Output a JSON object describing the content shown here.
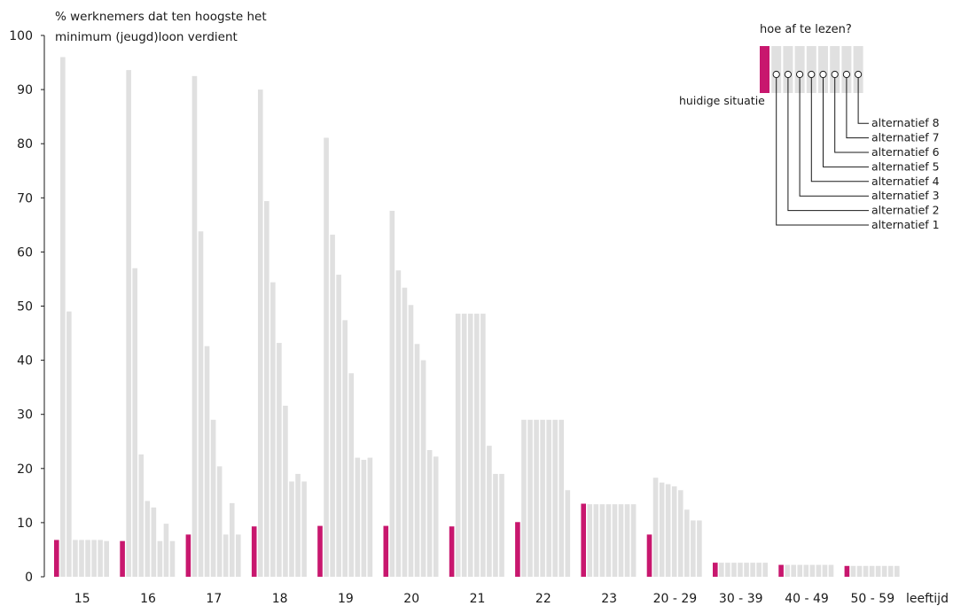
{
  "chart_data": {
    "type": "bar",
    "ylabel": [
      "% werknemers dat ten hoogste het",
      "minimum (jeugd)loon verdient"
    ],
    "xlabel": "leeftijd",
    "ylim": [
      0,
      100
    ],
    "yticks": [
      0,
      10,
      20,
      30,
      40,
      50,
      60,
      70,
      80,
      90,
      100
    ],
    "grid": false,
    "categories": [
      "15",
      "16",
      "17",
      "18",
      "19",
      "20",
      "21",
      "22",
      "23",
      "20 - 29",
      "30 - 39",
      "40 - 49",
      "50 - 59"
    ],
    "series": [
      {
        "name": "huidige situatie",
        "values": [
          6.8,
          6.6,
          7.8,
          9.3,
          9.4,
          9.4,
          9.3,
          10.1,
          13.5,
          7.8,
          2.6,
          2.2,
          2.0
        ]
      },
      {
        "name": "alternatief 1",
        "values": [
          96.0,
          93.6,
          92.5,
          90.0,
          81.1,
          67.6,
          48.6,
          29.0,
          13.4,
          18.3,
          2.6,
          2.2,
          2.0
        ]
      },
      {
        "name": "alternatief 2",
        "values": [
          49.0,
          57.0,
          63.8,
          69.4,
          63.2,
          56.6,
          48.6,
          29.0,
          13.4,
          17.4,
          2.6,
          2.2,
          2.0
        ]
      },
      {
        "name": "alternatief 3",
        "values": [
          6.8,
          22.6,
          42.6,
          54.4,
          55.8,
          53.4,
          48.6,
          29.0,
          13.4,
          17.1,
          2.6,
          2.2,
          2.0
        ]
      },
      {
        "name": "alternatief 4",
        "values": [
          6.8,
          14.0,
          29.0,
          43.2,
          47.4,
          50.2,
          48.6,
          29.0,
          13.4,
          16.7,
          2.6,
          2.2,
          2.0
        ]
      },
      {
        "name": "alternatief 5",
        "values": [
          6.8,
          12.8,
          20.4,
          31.6,
          37.6,
          43.0,
          48.6,
          29.0,
          13.4,
          16.0,
          2.6,
          2.2,
          2.0
        ]
      },
      {
        "name": "alternatief 6",
        "values": [
          6.8,
          6.6,
          7.8,
          17.6,
          22.0,
          40.0,
          24.2,
          29.0,
          13.4,
          12.4,
          2.6,
          2.2,
          2.0
        ]
      },
      {
        "name": "alternatief 7",
        "values": [
          6.8,
          9.8,
          13.6,
          19.0,
          21.6,
          23.4,
          19.0,
          29.0,
          13.4,
          10.4,
          2.6,
          2.2,
          2.0
        ]
      },
      {
        "name": "alternatief 8",
        "values": [
          6.6,
          6.6,
          7.8,
          17.6,
          22.0,
          22.2,
          19.0,
          16.0,
          13.4,
          10.4,
          2.6,
          2.2,
          2.0
        ]
      }
    ],
    "colors": {
      "current": "#c8176e",
      "alternative": "#e0e0e0",
      "axis": "#1a1a1a"
    },
    "legend": {
      "title": "hoe af te lezen?",
      "current_label": "huidige situatie",
      "alt_labels": [
        "alternatief 1",
        "alternatief 2",
        "alternatief 3",
        "alternatief 4",
        "alternatief 5",
        "alternatief 6",
        "alternatief 7",
        "alternatief 8"
      ]
    }
  }
}
